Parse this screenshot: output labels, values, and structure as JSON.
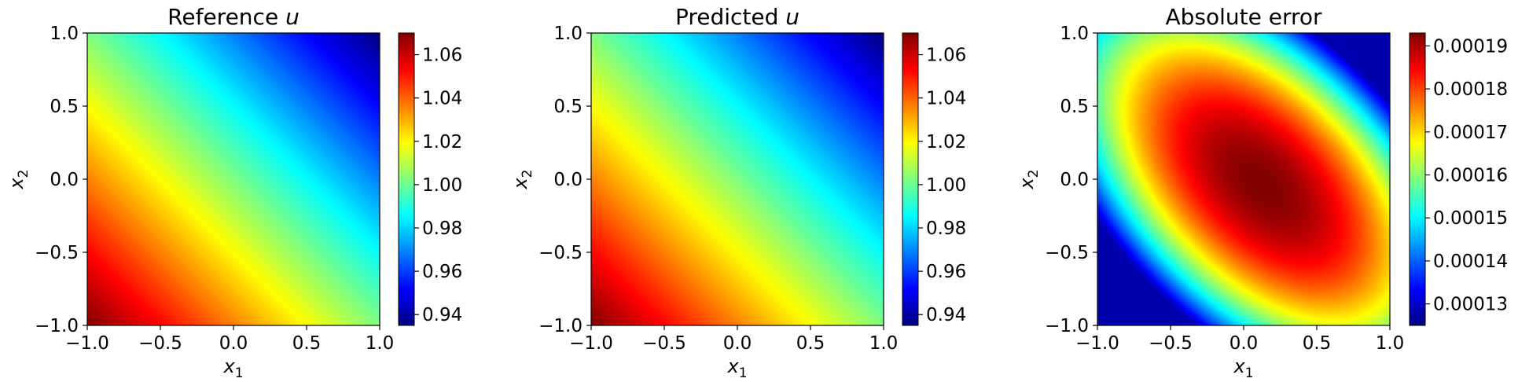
{
  "chart_data": [
    {
      "type": "heatmap",
      "title": "Reference u",
      "title_text": "Reference ",
      "title_var": "u",
      "xlabel": "x1",
      "ylabel": "x2",
      "xlim": [
        -1.0,
        1.0
      ],
      "ylim": [
        -1.0,
        1.0
      ],
      "x_ticks": [
        "−1.0",
        "−0.5",
        "0.0",
        "0.5",
        "1.0"
      ],
      "y_ticks": [
        "−1.0",
        "−0.5",
        "0.0",
        "0.5",
        "1.0"
      ],
      "colormap": "jet",
      "colorbar": {
        "range": [
          0.935,
          1.07
        ],
        "ticks": [
          0.94,
          0.96,
          0.98,
          1.0,
          1.02,
          1.04,
          1.06
        ],
        "tick_labels": [
          "0.94",
          "0.96",
          "0.98",
          "1.00",
          "1.02",
          "1.04",
          "1.06"
        ]
      },
      "field": {
        "form": "linear",
        "value_at_bottom_left": 1.07,
        "value_at_top_right": 0.935
      }
    },
    {
      "type": "heatmap",
      "title": "Predicted u",
      "title_text": "Predicted ",
      "title_var": "u",
      "xlabel": "x1",
      "ylabel": "x2",
      "xlim": [
        -1.0,
        1.0
      ],
      "ylim": [
        -1.0,
        1.0
      ],
      "x_ticks": [
        "−1.0",
        "−0.5",
        "0.0",
        "0.5",
        "1.0"
      ],
      "y_ticks": [
        "−1.0",
        "−0.5",
        "0.0",
        "0.5",
        "1.0"
      ],
      "colormap": "jet",
      "colorbar": {
        "range": [
          0.935,
          1.07
        ],
        "ticks": [
          0.94,
          0.96,
          0.98,
          1.0,
          1.02,
          1.04,
          1.06
        ],
        "tick_labels": [
          "0.94",
          "0.96",
          "0.98",
          "1.00",
          "1.02",
          "1.04",
          "1.06"
        ]
      },
      "field": {
        "form": "linear",
        "value_at_bottom_left": 1.07,
        "value_at_top_right": 0.935
      }
    },
    {
      "type": "heatmap",
      "title": "Absolute error",
      "title_text": "Absolute error",
      "title_var": "",
      "xlabel": "x1",
      "ylabel": "x2",
      "xlim": [
        -1.0,
        1.0
      ],
      "ylim": [
        -1.0,
        1.0
      ],
      "x_ticks": [
        "−1.0",
        "−0.5",
        "0.0",
        "0.5",
        "1.0"
      ],
      "y_ticks": [
        "−1.0",
        "−0.5",
        "0.0",
        "0.5",
        "1.0"
      ],
      "colormap": "jet",
      "colorbar": {
        "range": [
          0.000125,
          0.000193
        ],
        "ticks": [
          0.00013,
          0.00014,
          0.00015,
          0.00016,
          0.00017,
          0.00018,
          0.00019
        ],
        "tick_labels": [
          "0.00013",
          "0.00014",
          "0.00015",
          "0.00016",
          "0.00017",
          "0.00018",
          "0.00019"
        ]
      },
      "field": {
        "form": "elliptic",
        "peak_value": 0.000193,
        "peak_at": [
          0.12,
          -0.03
        ],
        "corner_value_bottom_left": 0.000138,
        "corner_value_top_right": 0.000128
      }
    }
  ]
}
